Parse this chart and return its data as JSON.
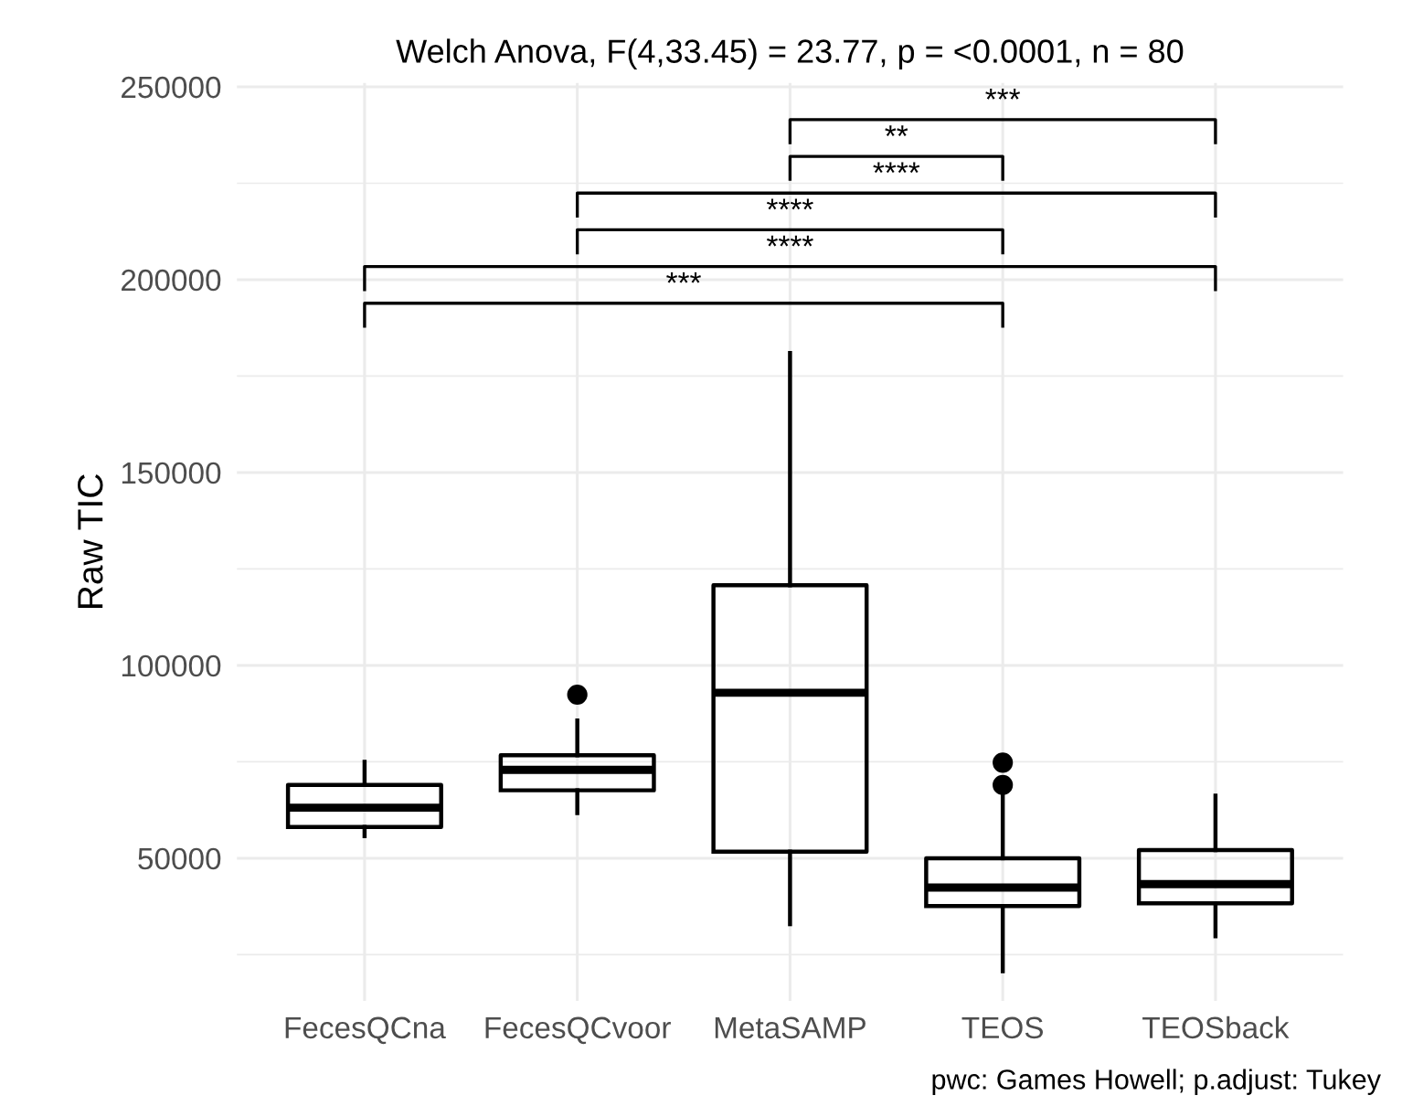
{
  "chart_data": {
    "type": "box",
    "title": "Welch Anova, F(4,33.45) = 23.77, p = <0.0001, n = 80",
    "ylabel": "Raw TIC",
    "categories": [
      "FecesQCna",
      "FecesQCvoor",
      "MetaSAMP",
      "TEOS",
      "TEOSback"
    ],
    "boxes": [
      {
        "low": 55700,
        "q1": 58100,
        "median": 63100,
        "q3": 69000,
        "high": 75000
      },
      {
        "low": 61700,
        "q1": 67600,
        "median": 72900,
        "q3": 76700,
        "high": 85700,
        "outliers": [
          92400
        ]
      },
      {
        "low": 32900,
        "q1": 51700,
        "median": 92900,
        "q3": 120800,
        "high": 181000
      },
      {
        "low": 20700,
        "q1": 37600,
        "median": 42400,
        "q3": 50000,
        "high": 66700,
        "outliers": [
          69000,
          74800
        ]
      },
      {
        "low": 29800,
        "q1": 38300,
        "median": 43300,
        "q3": 52100,
        "high": 66200
      }
    ],
    "color": "#000000",
    "ylim": [
      13000,
      251000
    ],
    "yticks": [
      50000,
      100000,
      150000,
      200000,
      250000
    ],
    "grid": true,
    "annotations": [
      "***",
      "**",
      "****",
      "****",
      "****",
      "***",
      "pwc: Games Howell; p.adjust: Tukey"
    ]
  }
}
